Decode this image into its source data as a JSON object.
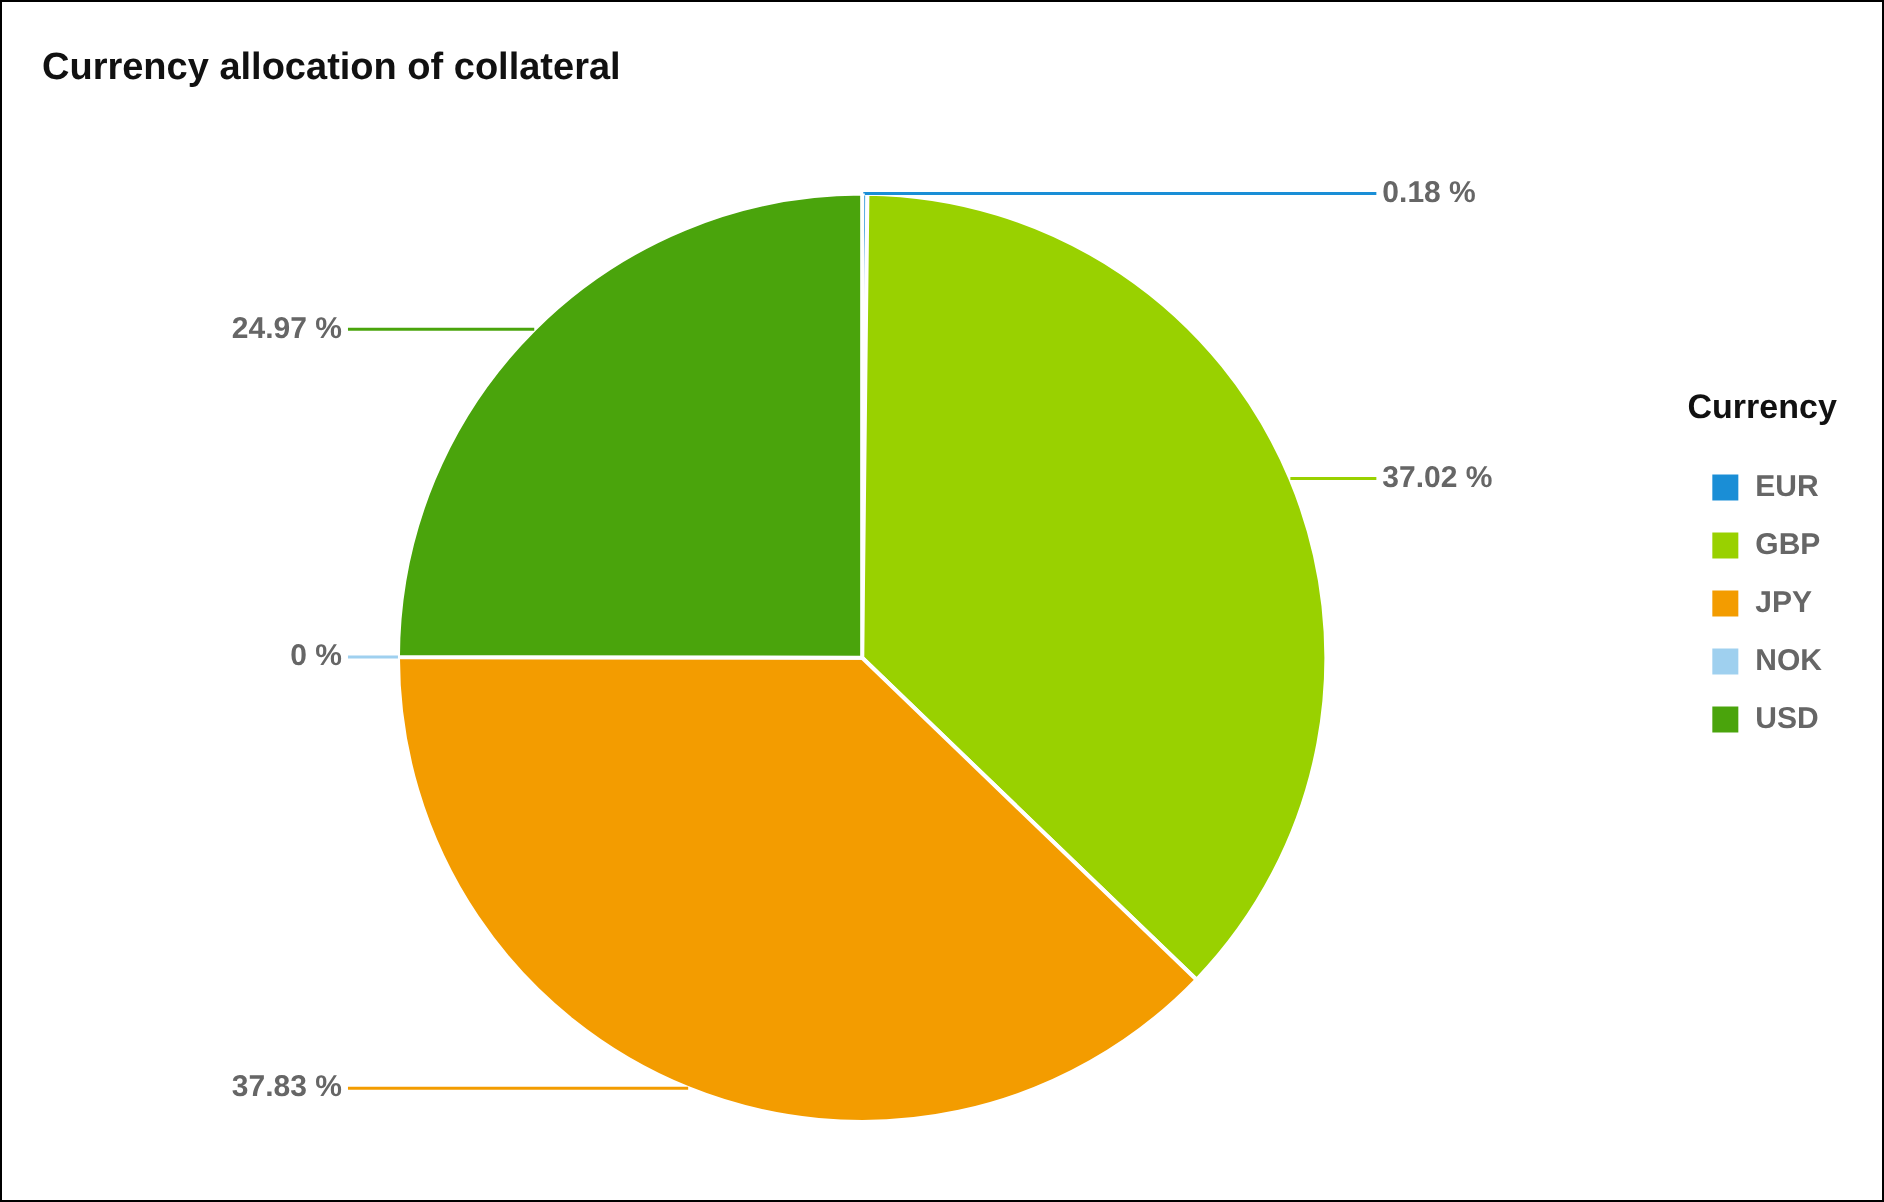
{
  "chart_data": {
    "type": "pie",
    "title": "Currency allocation of collateral",
    "legend_title": "Currency",
    "legend": "right",
    "categories": [
      "EUR",
      "GBP",
      "JPY",
      "NOK",
      "USD"
    ],
    "values": [
      0.18,
      37.02,
      37.83,
      0,
      24.97
    ],
    "value_labels": [
      "0.18 %",
      "37.02 %",
      "37.83 %",
      "0 %",
      "24.97 %"
    ],
    "colors": [
      "#1a8ed6",
      "#99d100",
      "#f39c00",
      "#9fd0ef",
      "#4aa40c"
    ]
  }
}
